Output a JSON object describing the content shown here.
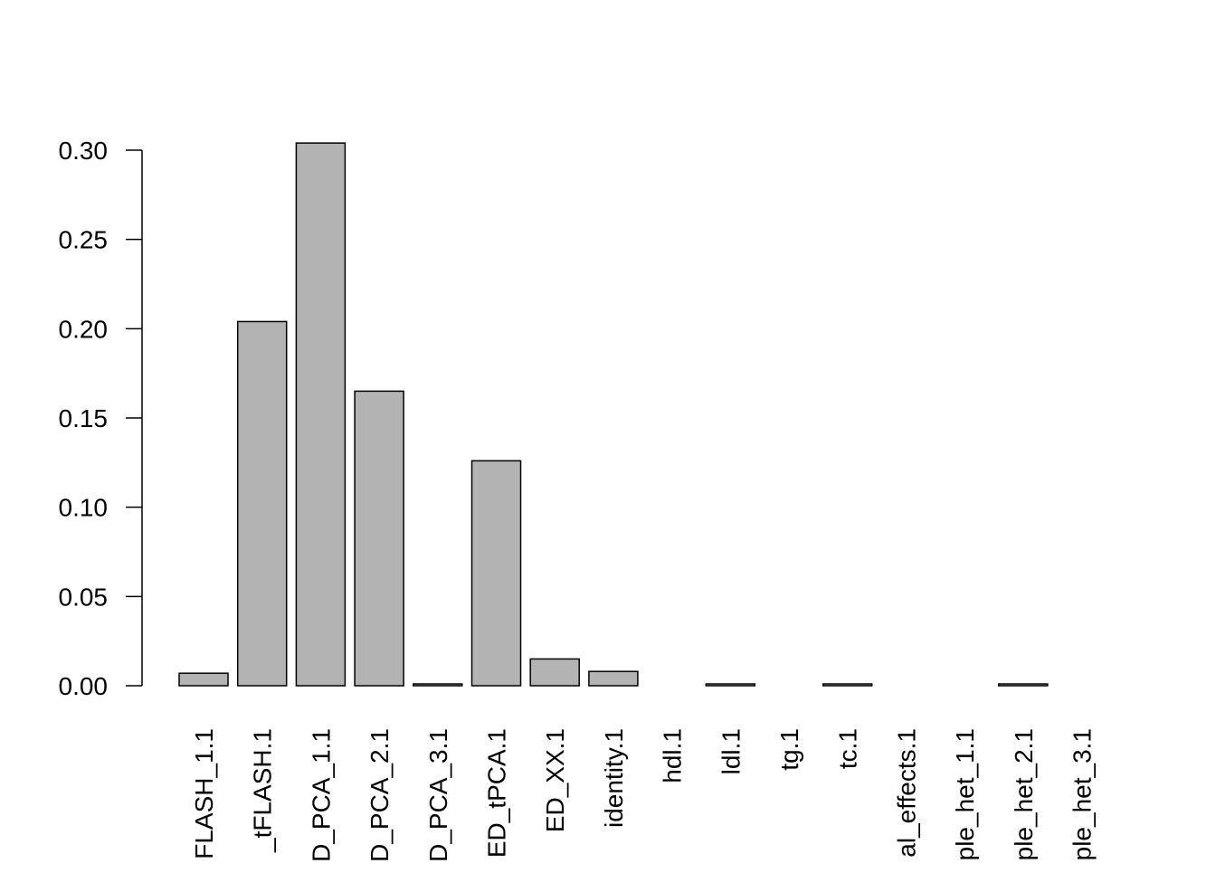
{
  "chart_data": {
    "type": "bar",
    "categories": [
      "FLASH_1.1",
      "_tFLASH.1",
      "D_PCA_1.1",
      "D_PCA_2.1",
      "D_PCA_3.1",
      "ED_tPCA.1",
      "ED_XX.1",
      "identity.1",
      "hdl.1",
      "ldl.1",
      "tg.1",
      "tc.1",
      "al_effects.1",
      "ple_het_1.1",
      "ple_het_2.1",
      "ple_het_3.1"
    ],
    "values": [
      0.007,
      0.204,
      0.304,
      0.165,
      0.001,
      0.126,
      0.015,
      0.008,
      0,
      0.001,
      0,
      0.001,
      0,
      0,
      0.001,
      0
    ],
    "color": "#b3b3b3",
    "ylim": [
      0,
      0.3
    ],
    "yticks": [
      {
        "value": 0,
        "label": "0.00"
      },
      {
        "value": 0.05,
        "label": "0.05"
      },
      {
        "value": 0.1,
        "label": "0.10"
      },
      {
        "value": 0.15,
        "label": "0.15"
      },
      {
        "value": 0.2,
        "label": "0.20"
      },
      {
        "value": 0.25,
        "label": "0.25"
      },
      {
        "value": 0.3,
        "label": "0.30"
      }
    ]
  }
}
